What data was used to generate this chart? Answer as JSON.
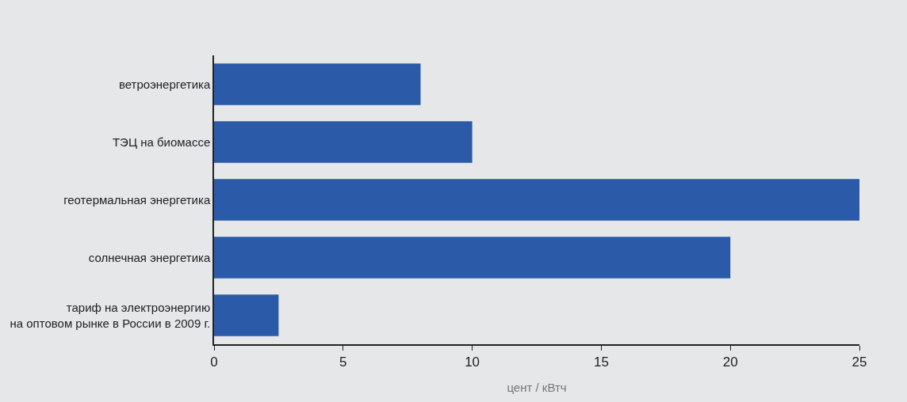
{
  "chart_data": {
    "type": "bar",
    "orientation": "horizontal",
    "xlabel": "цент / кВтч",
    "categories": [
      "ветроэнергетика",
      "ТЭЦ на биомассе",
      "геотермальная энергетика",
      "солнечная энергетика",
      "тариф на электроэнергию\nна оптовом рынке в России в 2009 г."
    ],
    "values": [
      8,
      10,
      25,
      20,
      2.5
    ],
    "color": "#2b5aa8",
    "xlim": [
      0,
      25
    ],
    "xticks": [
      0,
      5,
      10,
      15,
      20,
      25
    ],
    "grid": false,
    "legend": false
  }
}
